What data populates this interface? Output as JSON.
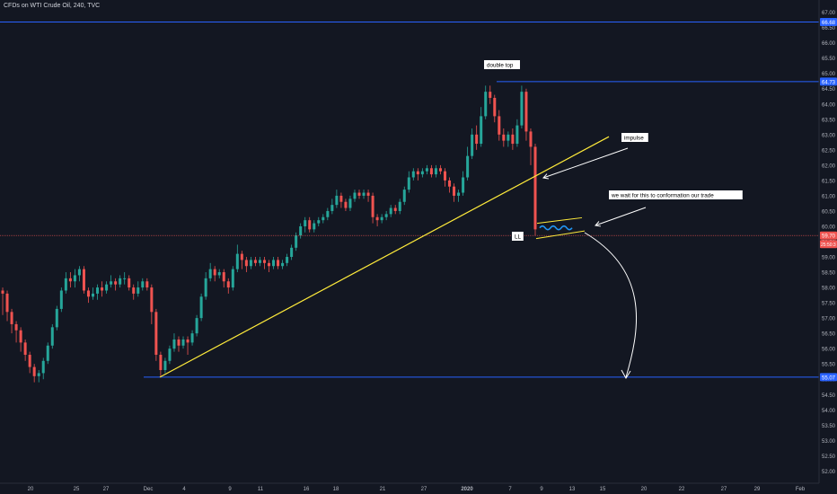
{
  "header": {
    "title": "CFDs on WTI Crude Oil, 240, TVC"
  },
  "colors": {
    "background": "#131722",
    "up": "#26a69a",
    "down": "#ef5350",
    "horizontal_line": "#2962ff",
    "trendline": "#ffeb3b",
    "arrow": "#ffffff",
    "wave": "#2196f3",
    "last_price": "#ef5350"
  },
  "chart_data": {
    "type": "candlestick",
    "symbol": "CFDs on WTI Crude Oil",
    "interval": "240",
    "source": "TVC",
    "ylim": [
      51.6,
      67.4
    ],
    "y_ticks": [
      "52.00",
      "52.50",
      "53.00",
      "53.50",
      "54.00",
      "54.50",
      "55.00",
      "55.50",
      "56.00",
      "56.50",
      "57.00",
      "57.50",
      "58.00",
      "58.50",
      "59.00",
      "59.50",
      "60.00",
      "60.50",
      "61.00",
      "61.50",
      "62.00",
      "62.50",
      "63.00",
      "63.50",
      "64.00",
      "64.50",
      "65.00",
      "65.50",
      "66.00",
      "66.50",
      "67.00"
    ],
    "x_ticks": [
      "20",
      "25",
      "27",
      "Dec",
      "4",
      "9",
      "11",
      "16",
      "18",
      "21",
      "27",
      "2020",
      "7",
      "9",
      "13",
      "15",
      "20",
      "22",
      "27",
      "29",
      "Feb"
    ],
    "price_labels": [
      {
        "value": 66.68,
        "text": "66.68",
        "kind": "level"
      },
      {
        "value": 64.73,
        "text": "64.73",
        "kind": "level"
      },
      {
        "value": 59.7,
        "text": "59.70",
        "kind": "last"
      },
      {
        "value": 55.07,
        "text": "55.07",
        "kind": "level"
      }
    ],
    "countdown": "25:50:3",
    "horizontal_levels": [
      66.68,
      64.73,
      55.07
    ],
    "last_price": 59.7,
    "annotations": [
      "double top",
      "impulse",
      "we wait for this to conformation our trade",
      "LL"
    ],
    "candles": [
      [
        57.9,
        57.8,
        58.0,
        57.1
      ],
      [
        57.8,
        57.2,
        57.9,
        56.9
      ],
      [
        57.2,
        56.8,
        57.3,
        56.5
      ],
      [
        56.8,
        56.6,
        56.9,
        56.2
      ],
      [
        56.6,
        56.2,
        56.7,
        55.9
      ],
      [
        56.2,
        55.8,
        56.3,
        55.6
      ],
      [
        55.8,
        55.4,
        55.9,
        55.2
      ],
      [
        55.4,
        55.1,
        55.5,
        54.9
      ],
      [
        55.1,
        55.2,
        55.3,
        54.9
      ],
      [
        55.2,
        55.6,
        55.7,
        55.0
      ],
      [
        55.6,
        56.1,
        56.2,
        55.5
      ],
      [
        56.1,
        56.7,
        56.8,
        56.0
      ],
      [
        56.7,
        57.3,
        57.4,
        56.6
      ],
      [
        57.3,
        57.9,
        58.0,
        57.2
      ],
      [
        57.9,
        58.3,
        58.5,
        57.8
      ],
      [
        58.3,
        58.2,
        58.5,
        58.0
      ],
      [
        58.2,
        58.4,
        58.6,
        58.0
      ],
      [
        58.4,
        58.6,
        58.7,
        58.2
      ],
      [
        58.6,
        57.9,
        58.7,
        57.8
      ],
      [
        57.9,
        57.7,
        58.0,
        57.5
      ],
      [
        57.7,
        57.8,
        58.0,
        57.6
      ],
      [
        57.8,
        58.0,
        58.1,
        57.6
      ],
      [
        58.0,
        57.9,
        58.2,
        57.7
      ],
      [
        57.9,
        58.1,
        58.2,
        57.8
      ],
      [
        58.1,
        58.2,
        58.4,
        58.0
      ],
      [
        58.2,
        58.1,
        58.3,
        57.9
      ],
      [
        58.1,
        58.3,
        58.4,
        58.0
      ],
      [
        58.3,
        58.3,
        58.5,
        58.1
      ],
      [
        58.3,
        58.0,
        58.4,
        57.9
      ],
      [
        58.0,
        57.8,
        58.1,
        57.6
      ],
      [
        57.8,
        58.0,
        58.2,
        57.7
      ],
      [
        58.0,
        58.2,
        58.3,
        57.9
      ],
      [
        58.2,
        58.0,
        58.3,
        57.9
      ],
      [
        58.0,
        57.2,
        58.1,
        56.8
      ],
      [
        57.2,
        55.8,
        57.3,
        55.6
      ],
      [
        55.8,
        55.3,
        55.9,
        55.1
      ],
      [
        55.3,
        55.6,
        55.7,
        55.2
      ],
      [
        55.6,
        56.0,
        56.1,
        55.5
      ],
      [
        56.0,
        56.3,
        56.5,
        55.9
      ],
      [
        56.3,
        56.1,
        56.4,
        55.9
      ],
      [
        56.1,
        56.3,
        56.4,
        56.0
      ],
      [
        56.3,
        56.2,
        56.4,
        55.8
      ],
      [
        56.2,
        56.5,
        56.6,
        56.1
      ],
      [
        56.5,
        57.0,
        57.1,
        56.4
      ],
      [
        57.0,
        57.7,
        57.8,
        56.9
      ],
      [
        57.7,
        58.3,
        58.5,
        57.6
      ],
      [
        58.3,
        58.6,
        58.8,
        58.2
      ],
      [
        58.6,
        58.4,
        58.7,
        58.2
      ],
      [
        58.4,
        58.5,
        58.6,
        58.3
      ],
      [
        58.5,
        58.2,
        58.6,
        58.0
      ],
      [
        58.2,
        58.0,
        58.3,
        57.8
      ],
      [
        58.0,
        58.6,
        58.7,
        57.9
      ],
      [
        58.6,
        59.1,
        59.4,
        58.5
      ],
      [
        59.1,
        58.9,
        59.2,
        58.6
      ],
      [
        58.9,
        58.7,
        59.0,
        58.5
      ],
      [
        58.7,
        58.9,
        59.0,
        58.6
      ],
      [
        58.9,
        58.8,
        59.0,
        58.7
      ],
      [
        58.8,
        58.9,
        59.0,
        58.7
      ],
      [
        58.9,
        58.8,
        59.0,
        58.6
      ],
      [
        58.8,
        58.7,
        58.9,
        58.5
      ],
      [
        58.7,
        58.9,
        59.0,
        58.6
      ],
      [
        58.9,
        58.7,
        59.0,
        58.6
      ],
      [
        58.7,
        58.8,
        58.9,
        58.6
      ],
      [
        58.8,
        59.0,
        59.1,
        58.7
      ],
      [
        59.0,
        59.3,
        59.4,
        58.9
      ],
      [
        59.3,
        59.7,
        59.8,
        59.2
      ],
      [
        59.7,
        60.0,
        60.1,
        59.6
      ],
      [
        60.0,
        60.2,
        60.3,
        59.8
      ],
      [
        60.2,
        59.9,
        60.3,
        59.8
      ],
      [
        59.9,
        60.1,
        60.2,
        59.8
      ],
      [
        60.1,
        60.2,
        60.3,
        60.0
      ],
      [
        60.2,
        60.3,
        60.4,
        60.1
      ],
      [
        60.3,
        60.5,
        60.6,
        60.2
      ],
      [
        60.5,
        60.7,
        60.9,
        60.4
      ],
      [
        60.7,
        61.0,
        61.2,
        60.6
      ],
      [
        61.0,
        60.8,
        61.1,
        60.6
      ],
      [
        60.8,
        60.6,
        60.9,
        60.5
      ],
      [
        60.6,
        60.9,
        61.0,
        60.5
      ],
      [
        60.9,
        61.1,
        61.2,
        60.8
      ],
      [
        61.1,
        61.0,
        61.2,
        60.9
      ],
      [
        61.0,
        61.1,
        61.2,
        60.9
      ],
      [
        61.1,
        61.0,
        61.2,
        60.8
      ],
      [
        61.0,
        60.3,
        61.1,
        60.1
      ],
      [
        60.3,
        60.2,
        60.4,
        60.0
      ],
      [
        60.2,
        60.3,
        60.4,
        60.1
      ],
      [
        60.3,
        60.4,
        60.5,
        60.2
      ],
      [
        60.4,
        60.6,
        60.7,
        60.3
      ],
      [
        60.6,
        60.5,
        60.7,
        60.4
      ],
      [
        60.5,
        60.8,
        60.9,
        60.4
      ],
      [
        60.8,
        61.2,
        61.3,
        60.7
      ],
      [
        61.2,
        61.6,
        61.8,
        61.1
      ],
      [
        61.6,
        61.8,
        61.9,
        61.5
      ],
      [
        61.8,
        61.7,
        61.9,
        61.5
      ],
      [
        61.7,
        61.8,
        61.9,
        61.6
      ],
      [
        61.8,
        61.9,
        62.0,
        61.7
      ],
      [
        61.9,
        61.7,
        62.0,
        61.6
      ],
      [
        61.7,
        61.9,
        62.0,
        61.6
      ],
      [
        61.9,
        61.8,
        62.0,
        61.7
      ],
      [
        61.8,
        61.5,
        61.9,
        61.3
      ],
      [
        61.5,
        61.3,
        61.6,
        61.1
      ],
      [
        61.3,
        61.0,
        61.4,
        60.8
      ],
      [
        61.0,
        61.1,
        61.2,
        60.8
      ],
      [
        61.1,
        61.6,
        61.8,
        61.0
      ],
      [
        61.6,
        62.3,
        62.6,
        61.5
      ],
      [
        62.3,
        63.0,
        63.2,
        62.2
      ],
      [
        63.0,
        62.7,
        63.3,
        62.5
      ],
      [
        62.7,
        63.6,
        63.9,
        62.6
      ],
      [
        63.6,
        64.4,
        64.6,
        63.5
      ],
      [
        64.4,
        64.2,
        64.6,
        64.0
      ],
      [
        64.2,
        63.6,
        64.3,
        63.4
      ],
      [
        63.6,
        63.0,
        63.8,
        62.8
      ],
      [
        63.0,
        62.8,
        63.2,
        62.6
      ],
      [
        62.8,
        63.0,
        63.1,
        62.6
      ],
      [
        63.0,
        62.7,
        63.2,
        62.5
      ],
      [
        62.7,
        63.3,
        63.5,
        62.6
      ],
      [
        63.3,
        64.4,
        64.6,
        63.2
      ],
      [
        64.4,
        63.1,
        64.5,
        62.8
      ],
      [
        63.1,
        62.6,
        63.2,
        62.0
      ],
      [
        62.6,
        59.9,
        62.7,
        59.7
      ]
    ]
  }
}
